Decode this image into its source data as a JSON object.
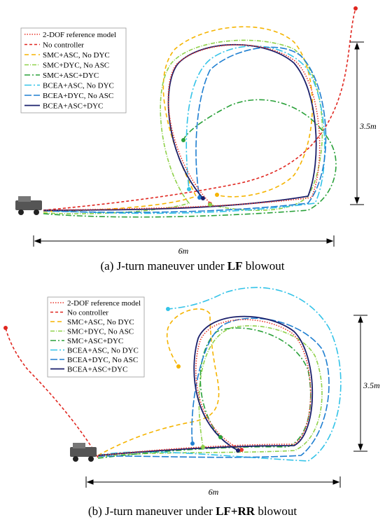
{
  "colors": {
    "ref": "#e8352a",
    "nocontrol": "#e0261f",
    "smc_asc": "#f5b400",
    "smc_dyc": "#8fd14a",
    "smc_asc_dyc": "#2aa13a",
    "bcea_asc": "#33c3e8",
    "bcea_dyc": "#1f7fd1",
    "bcea_asc_dyc": "#1a1f6b"
  },
  "legend": [
    "2-DOF reference model",
    "No controller",
    "SMC+ASC, No DYC",
    "SMC+DYC, No ASC",
    "SMC+ASC+DYC",
    "BCEA+ASC, No DYC",
    "BCEA+DYC, No ASC",
    "BCEA+ASC+DYC"
  ],
  "panel_a": {
    "width_label": "6m",
    "height_label": "3.5m",
    "caption_letter": "(a)",
    "caption_text": " J-turn maneuver under ",
    "caption_bold": "LF",
    "caption_tail": " blowout"
  },
  "panel_b": {
    "width_label": "6m",
    "height_label": "3.5m",
    "caption_letter": "(b)",
    "caption_text": " J-turn maneuver under ",
    "caption_bold": "LF+RR",
    "caption_tail": " blowout"
  }
}
